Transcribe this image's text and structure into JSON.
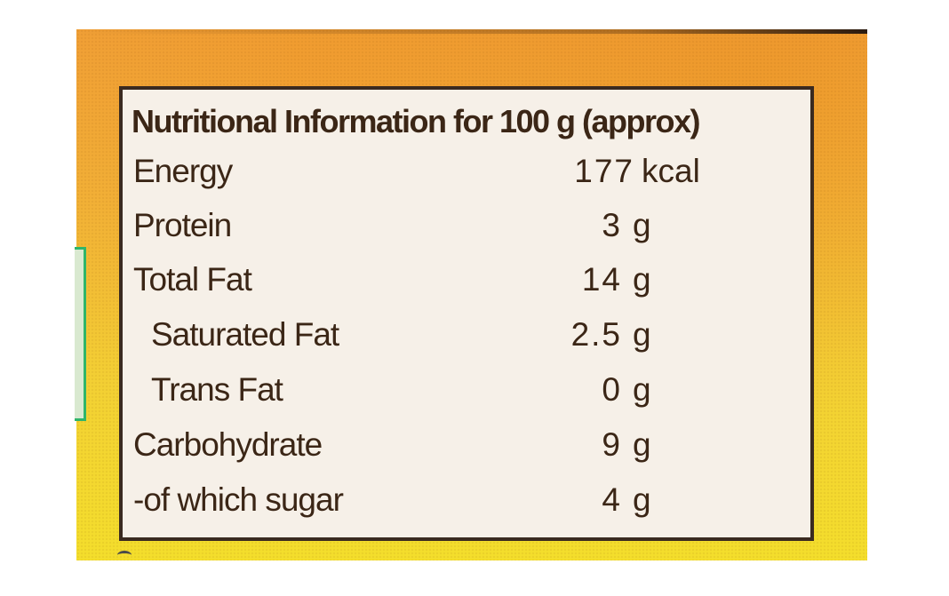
{
  "colors": {
    "background_gradient_top": "#f0a23a",
    "background_gradient_bottom": "#f4de2c",
    "label_fill": "#f6f0e8",
    "label_border": "#3a2a20",
    "text": "#3b2616",
    "green_tab_border": "#2fb56a"
  },
  "label": {
    "title": "Nutritional Information for 100 g (approx)",
    "rows": [
      {
        "nutrient": "Energy",
        "amount": "177",
        "unit": "kcal",
        "indented": false
      },
      {
        "nutrient": "Protein",
        "amount": "3",
        "unit": "g",
        "indented": false
      },
      {
        "nutrient": "Total Fat",
        "amount": "14",
        "unit": "g",
        "indented": false
      },
      {
        "nutrient": "Saturated Fat",
        "amount": "2.5",
        "unit": "g",
        "indented": true
      },
      {
        "nutrient": "Trans Fat",
        "amount": "0",
        "unit": "g",
        "indented": true
      },
      {
        "nutrient": "Carbohydrate",
        "amount": "9",
        "unit": "g",
        "indented": false
      },
      {
        "nutrient": "-of which sugar",
        "amount": "4",
        "unit": "g",
        "indented": false
      }
    ]
  }
}
